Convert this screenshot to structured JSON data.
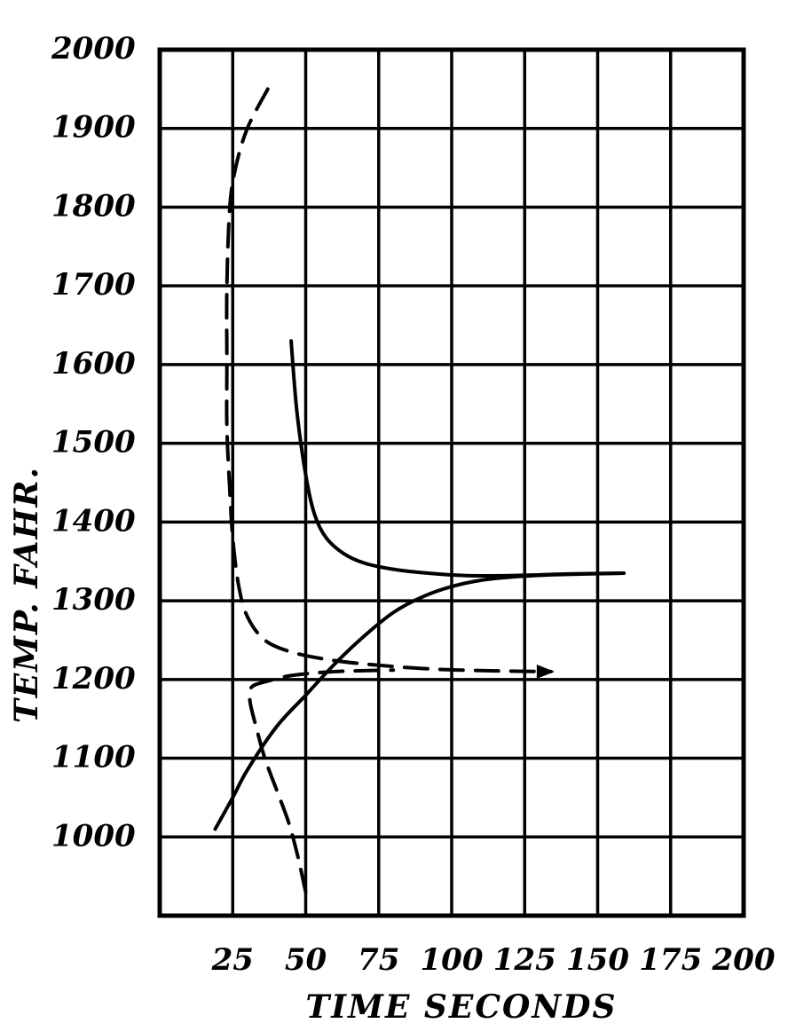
{
  "chart_data": {
    "type": "line",
    "xlabel": "TIME SECONDS",
    "ylabel": "TEMP. FAHR.",
    "xlim": [
      0,
      200
    ],
    "ylim": [
      900,
      2000
    ],
    "x_ticks": [
      25,
      50,
      75,
      100,
      125,
      150,
      175,
      200
    ],
    "x_tick_labels": [
      "25",
      "50",
      "75",
      "100",
      "125",
      "150",
      "175",
      "200"
    ],
    "y_ticks": [
      1000,
      1100,
      1200,
      1300,
      1400,
      1500,
      1600,
      1700,
      1800,
      1900,
      2000
    ],
    "y_tick_labels": [
      "1000",
      "1100",
      "1200",
      "1300",
      "1400",
      "1500",
      "1600",
      "1700",
      "1800",
      "1900",
      "2000"
    ],
    "grid": true,
    "series": [
      {
        "style": "dashed",
        "x": [
          37,
          30,
          26,
          24,
          23,
          23,
          23,
          24,
          25,
          27,
          30,
          36,
          45,
          58,
          75,
          95,
          115,
          134
        ],
        "y": [
          1950,
          1900,
          1850,
          1800,
          1700,
          1600,
          1520,
          1440,
          1380,
          1320,
          1280,
          1250,
          1235,
          1225,
          1218,
          1213,
          1211,
          1210
        ]
      },
      {
        "style": "dashed",
        "x": [
          50,
          47,
          44,
          40,
          36,
          33,
          31,
          31,
          32,
          36,
          45,
          60,
          80
        ],
        "y": [
          930,
          980,
          1020,
          1060,
          1100,
          1140,
          1170,
          1185,
          1192,
          1197,
          1205,
          1210,
          1212
        ]
      },
      {
        "style": "solid",
        "x": [
          45,
          47,
          50,
          53,
          57,
          63,
          70,
          80,
          92,
          105,
          120,
          140,
          159
        ],
        "y": [
          1630,
          1540,
          1460,
          1410,
          1380,
          1360,
          1348,
          1340,
          1335,
          1332,
          1332,
          1334,
          1335
        ]
      },
      {
        "style": "solid",
        "x": [
          19,
          25,
          30,
          40,
          50,
          60,
          70,
          80,
          90,
          100,
          110,
          120,
          135,
          159
        ],
        "y": [
          1010,
          1050,
          1085,
          1140,
          1180,
          1220,
          1255,
          1285,
          1305,
          1318,
          1326,
          1330,
          1333,
          1335
        ]
      }
    ]
  }
}
